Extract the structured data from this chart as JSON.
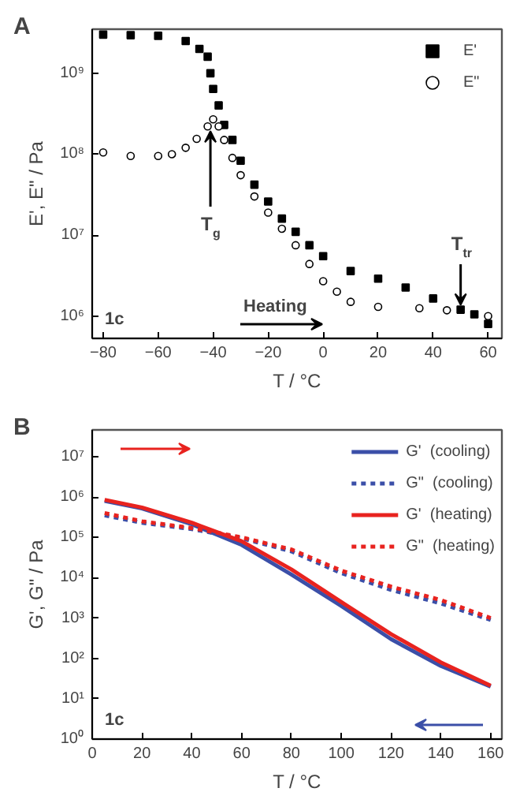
{
  "chart_data": [
    {
      "type": "scatter",
      "xlabel": "T / °C",
      "ylabel": "E', E\" / Pa",
      "log": true,
      "grid": false,
      "legend": "top right",
      "xlim": [
        -84,
        65
      ],
      "ylim": [
        530000,
        3500000000
      ],
      "xticks": [
        -80,
        -60,
        -40,
        -20,
        0,
        20,
        40,
        60
      ],
      "yticks": [
        {
          "value": 1000000,
          "label": "10⁶"
        },
        {
          "value": 10000000,
          "label": "10⁷"
        },
        {
          "value": 100000000,
          "label": "10⁸"
        },
        {
          "value": 1000000000,
          "label": "10⁹"
        }
      ],
      "annotations": [
        "A",
        "1c",
        "Heating",
        {
          "text": "T$_{g}$",
          "x": -41,
          "y": 270000000
        },
        {
          "text": "T$_{tr}$",
          "x": 50,
          "y": 1250000
        }
      ],
      "series": [
        {
          "name": "E'",
          "color": "#000000",
          "marker": "square",
          "x": [
            -80,
            -70,
            -60,
            -50,
            -45,
            -42,
            -41,
            -40,
            -38,
            -36,
            -33,
            -30,
            -25,
            -20,
            -15,
            -10,
            -5,
            0,
            10,
            20,
            30,
            40,
            50,
            55,
            60
          ],
          "values": [
            3000000000,
            2950000000,
            2900000000,
            2500000000,
            2000000000,
            1600000000,
            1000000000,
            640000000,
            400000000,
            230000000,
            150000000,
            83000000,
            42000000,
            26000000,
            16000000,
            11000000,
            7500000,
            5500000,
            3600000,
            2900000,
            2250000,
            1650000,
            1200000,
            1050000,
            800000
          ]
        },
        {
          "name": "E\"",
          "color": "#000000",
          "marker": "circle",
          "x": [
            -80,
            -70,
            -60,
            -55,
            -50,
            -46,
            -42,
            -40,
            -38,
            -36,
            -33,
            -30,
            -25,
            -20,
            -15,
            -10,
            -5,
            0,
            5,
            10,
            20,
            35,
            45,
            60
          ],
          "values": [
            105000000,
            95000000,
            95000000,
            100000000,
            120000000,
            155000000,
            220000000,
            270000000,
            220000000,
            150000000,
            90000000,
            55000000,
            30000000,
            19000000,
            12000000,
            7500000,
            4400000,
            2700000,
            2000000,
            1500000,
            1300000,
            1250000,
            1180000,
            1000000
          ]
        }
      ]
    },
    {
      "type": "line",
      "xlabel": "T / °C",
      "ylabel": "G', G\" / Pa",
      "log": true,
      "grid": false,
      "legend": "top right",
      "xlim": [
        0,
        164.5
      ],
      "ylim": [
        1,
        46000000
      ],
      "xticks": [
        0,
        20,
        40,
        60,
        80,
        100,
        120,
        140,
        160
      ],
      "yticks": [
        {
          "value": 1,
          "label": "10⁰"
        },
        {
          "value": 10,
          "label": "10¹"
        },
        {
          "value": 100,
          "label": "10²"
        },
        {
          "value": 1000,
          "label": "10³"
        },
        {
          "value": 10000,
          "label": "10⁴"
        },
        {
          "value": 100000,
          "label": "10⁵"
        },
        {
          "value": 1000000,
          "label": "10⁶"
        },
        {
          "value": 10000000,
          "label": "10⁷"
        }
      ],
      "annotations": [
        "B",
        "1c"
      ],
      "series": [
        {
          "name": "G'  (cooling)",
          "color": "#3b4fa8",
          "line_style": "solid",
          "x": [
            5,
            20,
            40,
            60,
            80,
            100,
            120,
            140,
            160
          ],
          "values": [
            800000,
            520000,
            210000,
            65000,
            12000,
            2000,
            300,
            65,
            20
          ]
        },
        {
          "name": "G\"  (cooling)",
          "color": "#3b4fa8",
          "line_style": "dotted",
          "x": [
            5,
            20,
            40,
            60,
            80,
            100,
            120,
            140,
            160
          ],
          "values": [
            350000,
            230000,
            160000,
            95000,
            45000,
            13000,
            5000,
            2300,
            900
          ]
        },
        {
          "name": "G'  (heating)",
          "color": "#e8231f",
          "line_style": "solid",
          "x": [
            5,
            20,
            40,
            60,
            80,
            100,
            120,
            140,
            160
          ],
          "values": [
            850000,
            550000,
            230000,
            80000,
            16000,
            2500,
            400,
            80,
            21
          ]
        },
        {
          "name": "G\"  (heating)",
          "color": "#e8231f",
          "line_style": "dotted",
          "x": [
            5,
            20,
            40,
            60,
            80,
            100,
            120,
            140,
            160
          ],
          "values": [
            400000,
            250000,
            170000,
            100000,
            50000,
            15000,
            6000,
            2800,
            1000
          ]
        }
      ]
    }
  ]
}
